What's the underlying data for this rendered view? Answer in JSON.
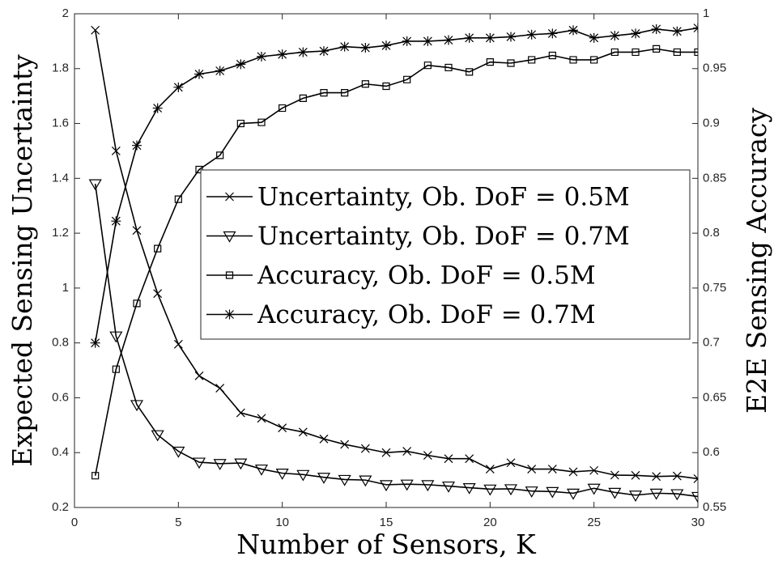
{
  "chart_data": {
    "type": "line",
    "x_label": "Number of Sensors, K",
    "y_label": "Expected Sensing Uncertainty",
    "y2_label": "E2E Sensing Accuracy",
    "x": [
      1,
      2,
      3,
      4,
      5,
      6,
      7,
      8,
      9,
      10,
      11,
      12,
      13,
      14,
      15,
      16,
      17,
      18,
      19,
      20,
      21,
      22,
      23,
      24,
      25,
      26,
      27,
      28,
      29,
      30
    ],
    "xlim": [
      0,
      30
    ],
    "xticks": [
      0,
      5,
      10,
      15,
      20,
      25,
      30
    ],
    "ylim": [
      0.2,
      2
    ],
    "yticks": [
      0.2,
      0.4,
      0.6,
      0.8,
      1,
      1.2,
      1.4,
      1.6,
      1.8,
      2
    ],
    "y2lim": [
      0.55,
      1
    ],
    "y2ticks": [
      0.55,
      0.6,
      0.65,
      0.7,
      0.75,
      0.8,
      0.85,
      0.9,
      0.95,
      1
    ],
    "legend": "upper right",
    "series": [
      {
        "name": "Uncertainty, Ob. DoF = 0.5M",
        "color": "#000000",
        "marker": "x",
        "axis": "y",
        "values": [
          1.94,
          1.5,
          1.21,
          0.98,
          0.795,
          0.68,
          0.635,
          0.545,
          0.525,
          0.49,
          0.475,
          0.45,
          0.43,
          0.415,
          0.4,
          0.405,
          0.39,
          0.378,
          0.378,
          0.34,
          0.363,
          0.34,
          0.34,
          0.33,
          0.335,
          0.318,
          0.317,
          0.313,
          0.315,
          0.305
        ]
      },
      {
        "name": "Uncertainty, Ob. DoF = 0.7M",
        "color": "#000000",
        "marker": "triangle-down",
        "axis": "y",
        "values": [
          1.38,
          0.825,
          0.575,
          0.465,
          0.405,
          0.365,
          0.36,
          0.362,
          0.34,
          0.325,
          0.32,
          0.31,
          0.302,
          0.3,
          0.283,
          0.285,
          0.283,
          0.278,
          0.272,
          0.267,
          0.268,
          0.26,
          0.258,
          0.252,
          0.27,
          0.255,
          0.245,
          0.252,
          0.25,
          0.24
        ]
      },
      {
        "name": "Accuracy, Ob. DoF = 0.5M",
        "color": "#000000",
        "marker": "square",
        "axis": "y2",
        "values": [
          0.579,
          0.676,
          0.736,
          0.786,
          0.831,
          0.858,
          0.871,
          0.9,
          0.901,
          0.914,
          0.923,
          0.928,
          0.928,
          0.936,
          0.934,
          0.94,
          0.953,
          0.951,
          0.947,
          0.956,
          0.955,
          0.958,
          0.962,
          0.958,
          0.958,
          0.965,
          0.965,
          0.968,
          0.965,
          0.965
        ]
      },
      {
        "name": "Accuracy, Ob. DoF = 0.7M",
        "color": "#000000",
        "marker": "star",
        "axis": "y2",
        "values": [
          0.7,
          0.811,
          0.88,
          0.914,
          0.933,
          0.945,
          0.948,
          0.954,
          0.961,
          0.963,
          0.965,
          0.966,
          0.97,
          0.969,
          0.971,
          0.975,
          0.975,
          0.976,
          0.978,
          0.978,
          0.979,
          0.981,
          0.982,
          0.985,
          0.978,
          0.98,
          0.982,
          0.986,
          0.984,
          0.987
        ]
      }
    ]
  }
}
